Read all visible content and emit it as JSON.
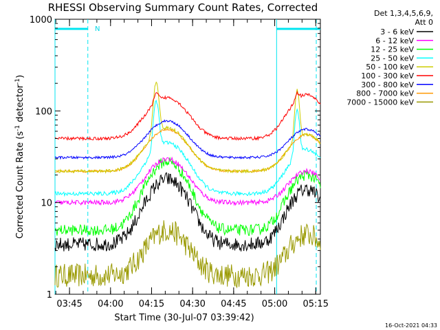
{
  "chart_data": {
    "type": "line",
    "title": "RHESSI Observing Summary Count Rates, Corrected",
    "xlabel": "Start Time (30-Jul-07 03:39:42)",
    "ylabel": "Corrected Count Rate (s",
    "ylabel_sup1": "-1",
    "ylabel_mid": " detector",
    "ylabel_sup2": "-1",
    "ylabel_end": ")",
    "yscale": "log",
    "xlim": [
      0,
      97
    ],
    "ylim": [
      1,
      1000
    ],
    "x_ticks": [
      {
        "t": 5.3,
        "label": "03:45"
      },
      {
        "t": 20.3,
        "label": "04:00"
      },
      {
        "t": 35.3,
        "label": "04:15"
      },
      {
        "t": 50.3,
        "label": "04:30"
      },
      {
        "t": 65.3,
        "label": "04:45"
      },
      {
        "t": 80.3,
        "label": "05:00"
      },
      {
        "t": 95.3,
        "label": "05:15"
      }
    ],
    "y_ticks": [
      {
        "v": 1,
        "label": "1"
      },
      {
        "v": 10,
        "label": "10"
      },
      {
        "v": 100,
        "label": "100"
      },
      {
        "v": 1000,
        "label": "1000"
      }
    ],
    "legend_header": [
      "Det 1,3,4,5,6,9,",
      "Att 0"
    ],
    "legend_placement": "right",
    "series": [
      {
        "name": "3 - 6 keV",
        "color": "#000000",
        "base": 3.5,
        "hump1": 18,
        "hump2": 14,
        "noise": 0.18,
        "spike": 0
      },
      {
        "name": "6 - 12 keV",
        "color": "#ff00ff",
        "base": 10,
        "hump1": 30,
        "hump2": 22,
        "noise": 0.06,
        "spike": 0
      },
      {
        "name": "12 - 25 keV",
        "color": "#00ff00",
        "base": 5,
        "hump1": 28,
        "hump2": 20,
        "noise": 0.14,
        "spike": 0
      },
      {
        "name": "25 - 50 keV",
        "color": "#00ffff",
        "base": 12.5,
        "hump1": 45,
        "hump2": 38,
        "noise": 0.05,
        "spike": 90
      },
      {
        "name": "50 - 100 keV",
        "color": "#cccc00",
        "base": 22,
        "hump1": 65,
        "hump2": 55,
        "noise": 0.04,
        "spike": 150
      },
      {
        "name": "100 - 300 keV",
        "color": "#ff0000",
        "base": 50,
        "hump1": 140,
        "hump2": 150,
        "noise": 0.04,
        "spike": 30
      },
      {
        "name": "300 - 800 keV",
        "color": "#0000ff",
        "base": 31,
        "hump1": 78,
        "hump2": 63,
        "noise": 0.03,
        "spike": 0
      },
      {
        "name": "800 - 7000 keV",
        "color": "#ff9900",
        "base": 22,
        "hump1": 63,
        "hump2": 55,
        "noise": 0.03,
        "spike": 0
      },
      {
        "name": "7000 - 15000 keV",
        "color": "#999900",
        "base": 1.6,
        "hump1": 5,
        "hump2": 4.5,
        "noise": 0.3,
        "spike": 0
      }
    ],
    "annotations": {
      "night_marker_label": "N"
    },
    "cyan_bars": [
      {
        "from": 0,
        "to": 12
      },
      {
        "from": 81,
        "to": 97
      }
    ],
    "cyan_solid_x": [
      0,
      81
    ],
    "cyan_dashed_x": [
      12,
      95.5
    ],
    "grid": false
  },
  "timestamp": "16-Oct-2021 04:33"
}
